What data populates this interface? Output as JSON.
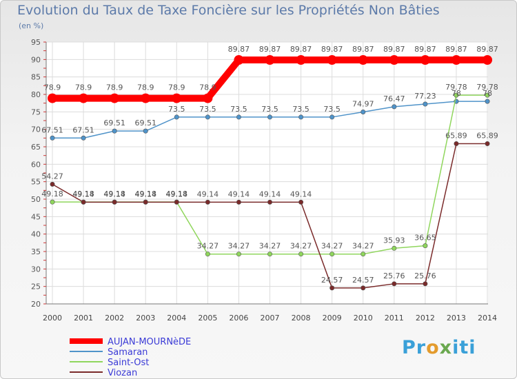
{
  "chart_data": {
    "type": "line",
    "title": "Evolution du Taux de Taxe Foncière sur les Propriétés Non Bâties",
    "subtitle": "(en %)",
    "x": [
      "2000",
      "2001",
      "2002",
      "2003",
      "2004",
      "2005",
      "2006",
      "2007",
      "2008",
      "2009",
      "2010",
      "2011",
      "2012",
      "2013",
      "2014"
    ],
    "ylim": [
      20,
      95
    ],
    "yticks": [
      20,
      25,
      30,
      35,
      40,
      45,
      50,
      55,
      60,
      65,
      70,
      75,
      80,
      85,
      90,
      95
    ],
    "grid": true,
    "series": [
      {
        "name": "AUJAN-MOURNèDE",
        "color": "#ff0000",
        "values": [
          78.9,
          78.9,
          78.9,
          78.9,
          78.9,
          78.9,
          89.87,
          89.87,
          89.87,
          89.87,
          89.87,
          89.87,
          89.87,
          89.87,
          89.87
        ],
        "labels": [
          "78.9",
          "78.9",
          "78.9",
          "78.9",
          "78.9",
          "78.9",
          "89.87",
          "89.87",
          "89.87",
          "89.87",
          "89.87",
          "89.87",
          "89.87",
          "89.87",
          "89.87"
        ]
      },
      {
        "name": "Samaran",
        "color": "#4f93c9",
        "values": [
          67.51,
          67.51,
          69.51,
          69.51,
          73.5,
          73.5,
          73.5,
          73.5,
          73.5,
          73.5,
          74.97,
          76.47,
          77.23,
          78,
          78
        ],
        "labels": [
          "67.51",
          "67.51",
          "69.51",
          "69.51",
          "73.5",
          "73.5",
          "73.5",
          "73.5",
          "73.5",
          "73.5",
          "74.97",
          "76.47",
          "77.23",
          "78",
          "78"
        ]
      },
      {
        "name": "Saint-Ost",
        "color": "#8fd65c",
        "values": [
          49.18,
          49.18,
          49.18,
          49.18,
          49.18,
          34.27,
          34.27,
          34.27,
          34.27,
          34.27,
          34.27,
          35.93,
          36.65,
          79.78,
          79.78
        ],
        "labels": [
          "49.18",
          "49.18",
          "49.18",
          "49.18",
          "49.18",
          "34.27",
          "34.27",
          "34.27",
          "34.27",
          "34.27",
          "34.27",
          "35.93",
          "36.65",
          "79.78",
          "79.78"
        ]
      },
      {
        "name": "Viozan",
        "color": "#7a2a2a",
        "values": [
          54.27,
          49.14,
          49.14,
          49.14,
          49.14,
          49.14,
          49.14,
          49.14,
          49.14,
          24.57,
          24.57,
          25.76,
          25.76,
          65.89,
          65.89
        ],
        "labels": [
          "54.27",
          "49.14",
          "49.14",
          "49.14",
          "49.14",
          "49.14",
          "49.14",
          "49.14",
          "49.14",
          "24.57",
          "24.57",
          "25.76",
          "25.76",
          "65.89",
          "65.89"
        ]
      }
    ]
  },
  "logo": {
    "p1": "Pr",
    "p2": "o",
    "p3": "x",
    "p4": "iti"
  }
}
